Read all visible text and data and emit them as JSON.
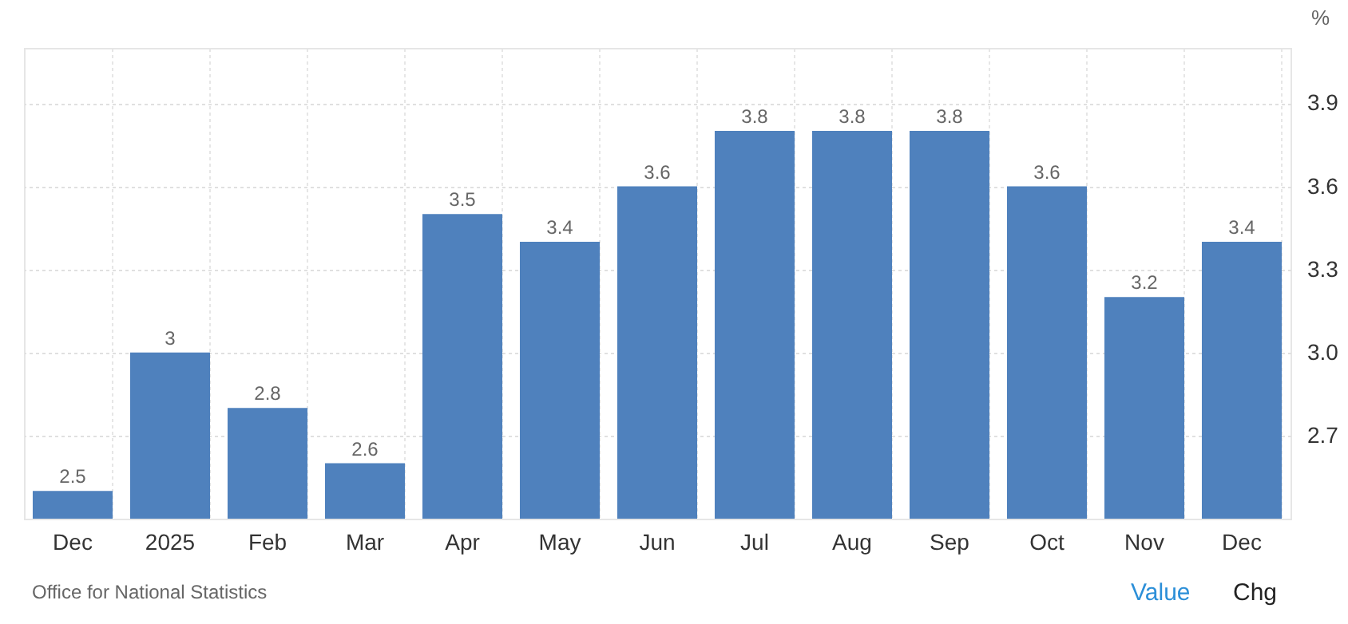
{
  "chart_data": {
    "type": "bar",
    "ylabel": "%",
    "categories": [
      "Dec",
      "2025",
      "Feb",
      "Mar",
      "Apr",
      "May",
      "Jun",
      "Jul",
      "Aug",
      "Sep",
      "Oct",
      "Nov",
      "Dec"
    ],
    "values": [
      2.5,
      3,
      2.8,
      2.6,
      3.5,
      3.4,
      3.6,
      3.8,
      3.8,
      3.8,
      3.6,
      3.2,
      3.4
    ],
    "value_labels": [
      "2.5",
      "3",
      "2.8",
      "2.6",
      "3.5",
      "3.4",
      "3.6",
      "3.8",
      "3.8",
      "3.8",
      "3.6",
      "3.2",
      "3.4"
    ],
    "color": "#4f81bd",
    "ylim": [
      2.4,
      4.1
    ],
    "yticks": [
      "2.7",
      "3.0",
      "3.3",
      "3.6",
      "3.9"
    ],
    "grid": true,
    "annotations": [
      "Office for National Statistics",
      "Value",
      "Chg"
    ]
  }
}
